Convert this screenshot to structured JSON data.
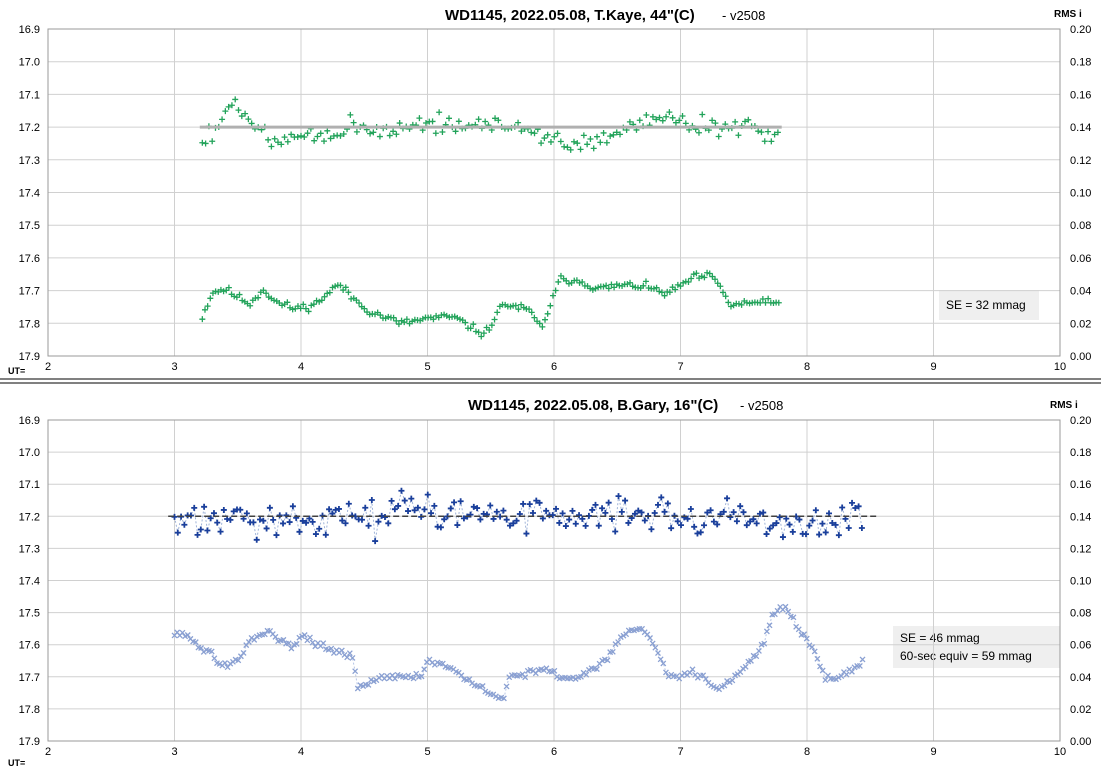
{
  "chart_data": [
    {
      "type": "scatter",
      "title": "WD1145, 2022.05.08, T.Kaye, 44\"(C)",
      "version": "- v2508",
      "right_axis_label": "RMS i",
      "x_axis_prefix": "UT=",
      "xlim": [
        2,
        10
      ],
      "ylim_left": [
        16.9,
        17.9
      ],
      "ylim_right": [
        0.0,
        0.2
      ],
      "x_ticks": [
        "2",
        "3",
        "4",
        "5",
        "6",
        "7",
        "8",
        "9",
        "10"
      ],
      "y_ticks_left": [
        "16.9",
        "17.0",
        "17.1",
        "17.2",
        "17.3",
        "17.4",
        "17.5",
        "17.6",
        "17.7",
        "17.8",
        "17.9"
      ],
      "y_ticks_right": [
        "0.20",
        "0.18",
        "0.16",
        "0.14",
        "0.12",
        "0.10",
        "0.08",
        "0.06",
        "0.04",
        "0.02",
        "0.00"
      ],
      "grid": true,
      "reference_line": {
        "y": 17.2,
        "x_range": [
          3.2,
          7.8
        ],
        "style": "solid",
        "color": "#b0b0b0"
      },
      "annotations": [
        "SE = 32 mmag"
      ],
      "series": [
        {
          "role": "magnitude",
          "axis": "left",
          "marker": "+",
          "color": "#22a35a",
          "connected": false,
          "x_range": [
            3.22,
            7.78
          ],
          "base": 17.205,
          "noise": 0.045,
          "seed": 7,
          "keypoints": [
            [
              3.25,
              17.24
            ],
            [
              3.45,
              17.13
            ],
            [
              3.6,
              17.18
            ],
            [
              3.75,
              17.24
            ],
            [
              4.2,
              17.22
            ],
            [
              4.4,
              17.2
            ],
            [
              4.6,
              17.22
            ],
            [
              5.0,
              17.19
            ],
            [
              5.5,
              17.19
            ],
            [
              5.9,
              17.22
            ],
            [
              6.1,
              17.26
            ],
            [
              6.3,
              17.25
            ],
            [
              6.6,
              17.2
            ],
            [
              6.8,
              17.18
            ],
            [
              7.2,
              17.19
            ],
            [
              7.5,
              17.2
            ],
            [
              7.78,
              17.23
            ]
          ]
        },
        {
          "role": "rms",
          "axis": "right",
          "marker": "+",
          "color": "#22a35a",
          "connected": false,
          "x_range": [
            3.22,
            7.78
          ],
          "noise": 0.0035,
          "seed": 11,
          "keypoints": [
            [
              3.22,
              0.024
            ],
            [
              3.3,
              0.039
            ],
            [
              3.4,
              0.041
            ],
            [
              3.5,
              0.036
            ],
            [
              3.6,
              0.032
            ],
            [
              3.7,
              0.041
            ],
            [
              3.8,
              0.033
            ],
            [
              3.95,
              0.029
            ],
            [
              4.1,
              0.031
            ],
            [
              4.3,
              0.044
            ],
            [
              4.4,
              0.036
            ],
            [
              4.55,
              0.027
            ],
            [
              4.8,
              0.02
            ],
            [
              5.0,
              0.023
            ],
            [
              5.2,
              0.024
            ],
            [
              5.45,
              0.013
            ],
            [
              5.6,
              0.032
            ],
            [
              5.8,
              0.028
            ],
            [
              5.9,
              0.017
            ],
            [
              6.05,
              0.047
            ],
            [
              6.2,
              0.046
            ],
            [
              6.35,
              0.041
            ],
            [
              6.5,
              0.043
            ],
            [
              6.7,
              0.043
            ],
            [
              6.9,
              0.038
            ],
            [
              7.1,
              0.048
            ],
            [
              7.25,
              0.049
            ],
            [
              7.4,
              0.031
            ],
            [
              7.6,
              0.033
            ],
            [
              7.78,
              0.032
            ]
          ]
        }
      ]
    },
    {
      "type": "scatter",
      "title": "WD1145, 2022.05.08, B.Gary, 16\"(C)",
      "version": "- v2508",
      "right_axis_label": "RMS i",
      "x_axis_prefix": "UT=",
      "xlim": [
        2,
        10
      ],
      "ylim_left": [
        16.9,
        17.9
      ],
      "ylim_right": [
        0.0,
        0.2
      ],
      "x_ticks": [
        "2",
        "3",
        "4",
        "5",
        "6",
        "7",
        "8",
        "9",
        "10"
      ],
      "y_ticks_left": [
        "16.9",
        "17.0",
        "17.1",
        "17.2",
        "17.3",
        "17.4",
        "17.5",
        "17.6",
        "17.7",
        "17.8",
        "17.9"
      ],
      "y_ticks_right": [
        "0.20",
        "0.18",
        "0.16",
        "0.14",
        "0.12",
        "0.10",
        "0.08",
        "0.06",
        "0.04",
        "0.02",
        "0.00"
      ],
      "grid": true,
      "reference_line": {
        "y": 17.2,
        "x_range": [
          2.95,
          8.55
        ],
        "style": "dashed",
        "color": "#404040"
      },
      "annotations": [
        "SE = 46 mmag",
        "60-sec equiv = 59  mmag"
      ],
      "series": [
        {
          "role": "magnitude",
          "axis": "left",
          "marker": "+",
          "color": "#1a3f9b",
          "connected": true,
          "line_color": "#9fb3d8",
          "x_range": [
            3.0,
            8.45
          ],
          "base": 17.205,
          "noise": 0.085,
          "seed": 23,
          "keypoints": [
            [
              3.0,
              17.22
            ],
            [
              4.0,
              17.21
            ],
            [
              5.0,
              17.19
            ],
            [
              6.0,
              17.2
            ],
            [
              7.0,
              17.2
            ],
            [
              8.0,
              17.22
            ],
            [
              8.45,
              17.2
            ]
          ]
        },
        {
          "role": "rms",
          "axis": "right",
          "marker": "x",
          "color": "#8aa0d2",
          "connected": true,
          "line_color": "#b8c6e6",
          "x_range": [
            3.0,
            8.45
          ],
          "noise": 0.003,
          "seed": 31,
          "keypoints": [
            [
              3.0,
              0.068
            ],
            [
              3.1,
              0.065
            ],
            [
              3.2,
              0.058
            ],
            [
              3.3,
              0.055
            ],
            [
              3.35,
              0.047
            ],
            [
              3.5,
              0.049
            ],
            [
              3.6,
              0.063
            ],
            [
              3.75,
              0.068
            ],
            [
              3.85,
              0.063
            ],
            [
              3.95,
              0.059
            ],
            [
              4.0,
              0.066
            ],
            [
              4.1,
              0.062
            ],
            [
              4.25,
              0.056
            ],
            [
              4.4,
              0.053
            ],
            [
              4.45,
              0.033
            ],
            [
              4.6,
              0.039
            ],
            [
              4.8,
              0.041
            ],
            [
              4.95,
              0.04
            ],
            [
              5.0,
              0.05
            ],
            [
              5.15,
              0.047
            ],
            [
              5.3,
              0.038
            ],
            [
              5.5,
              0.03
            ],
            [
              5.6,
              0.025
            ],
            [
              5.65,
              0.04
            ],
            [
              5.8,
              0.043
            ],
            [
              6.0,
              0.044
            ],
            [
              6.05,
              0.038
            ],
            [
              6.2,
              0.04
            ],
            [
              6.4,
              0.05
            ],
            [
              6.55,
              0.066
            ],
            [
              6.7,
              0.071
            ],
            [
              6.8,
              0.06
            ],
            [
              6.9,
              0.04
            ],
            [
              7.1,
              0.043
            ],
            [
              7.3,
              0.033
            ],
            [
              7.45,
              0.041
            ],
            [
              7.55,
              0.05
            ],
            [
              7.65,
              0.06
            ],
            [
              7.75,
              0.082
            ],
            [
              7.85,
              0.082
            ],
            [
              7.95,
              0.067
            ],
            [
              8.05,
              0.057
            ],
            [
              8.15,
              0.039
            ],
            [
              8.3,
              0.041
            ],
            [
              8.45,
              0.05
            ]
          ]
        }
      ]
    }
  ]
}
